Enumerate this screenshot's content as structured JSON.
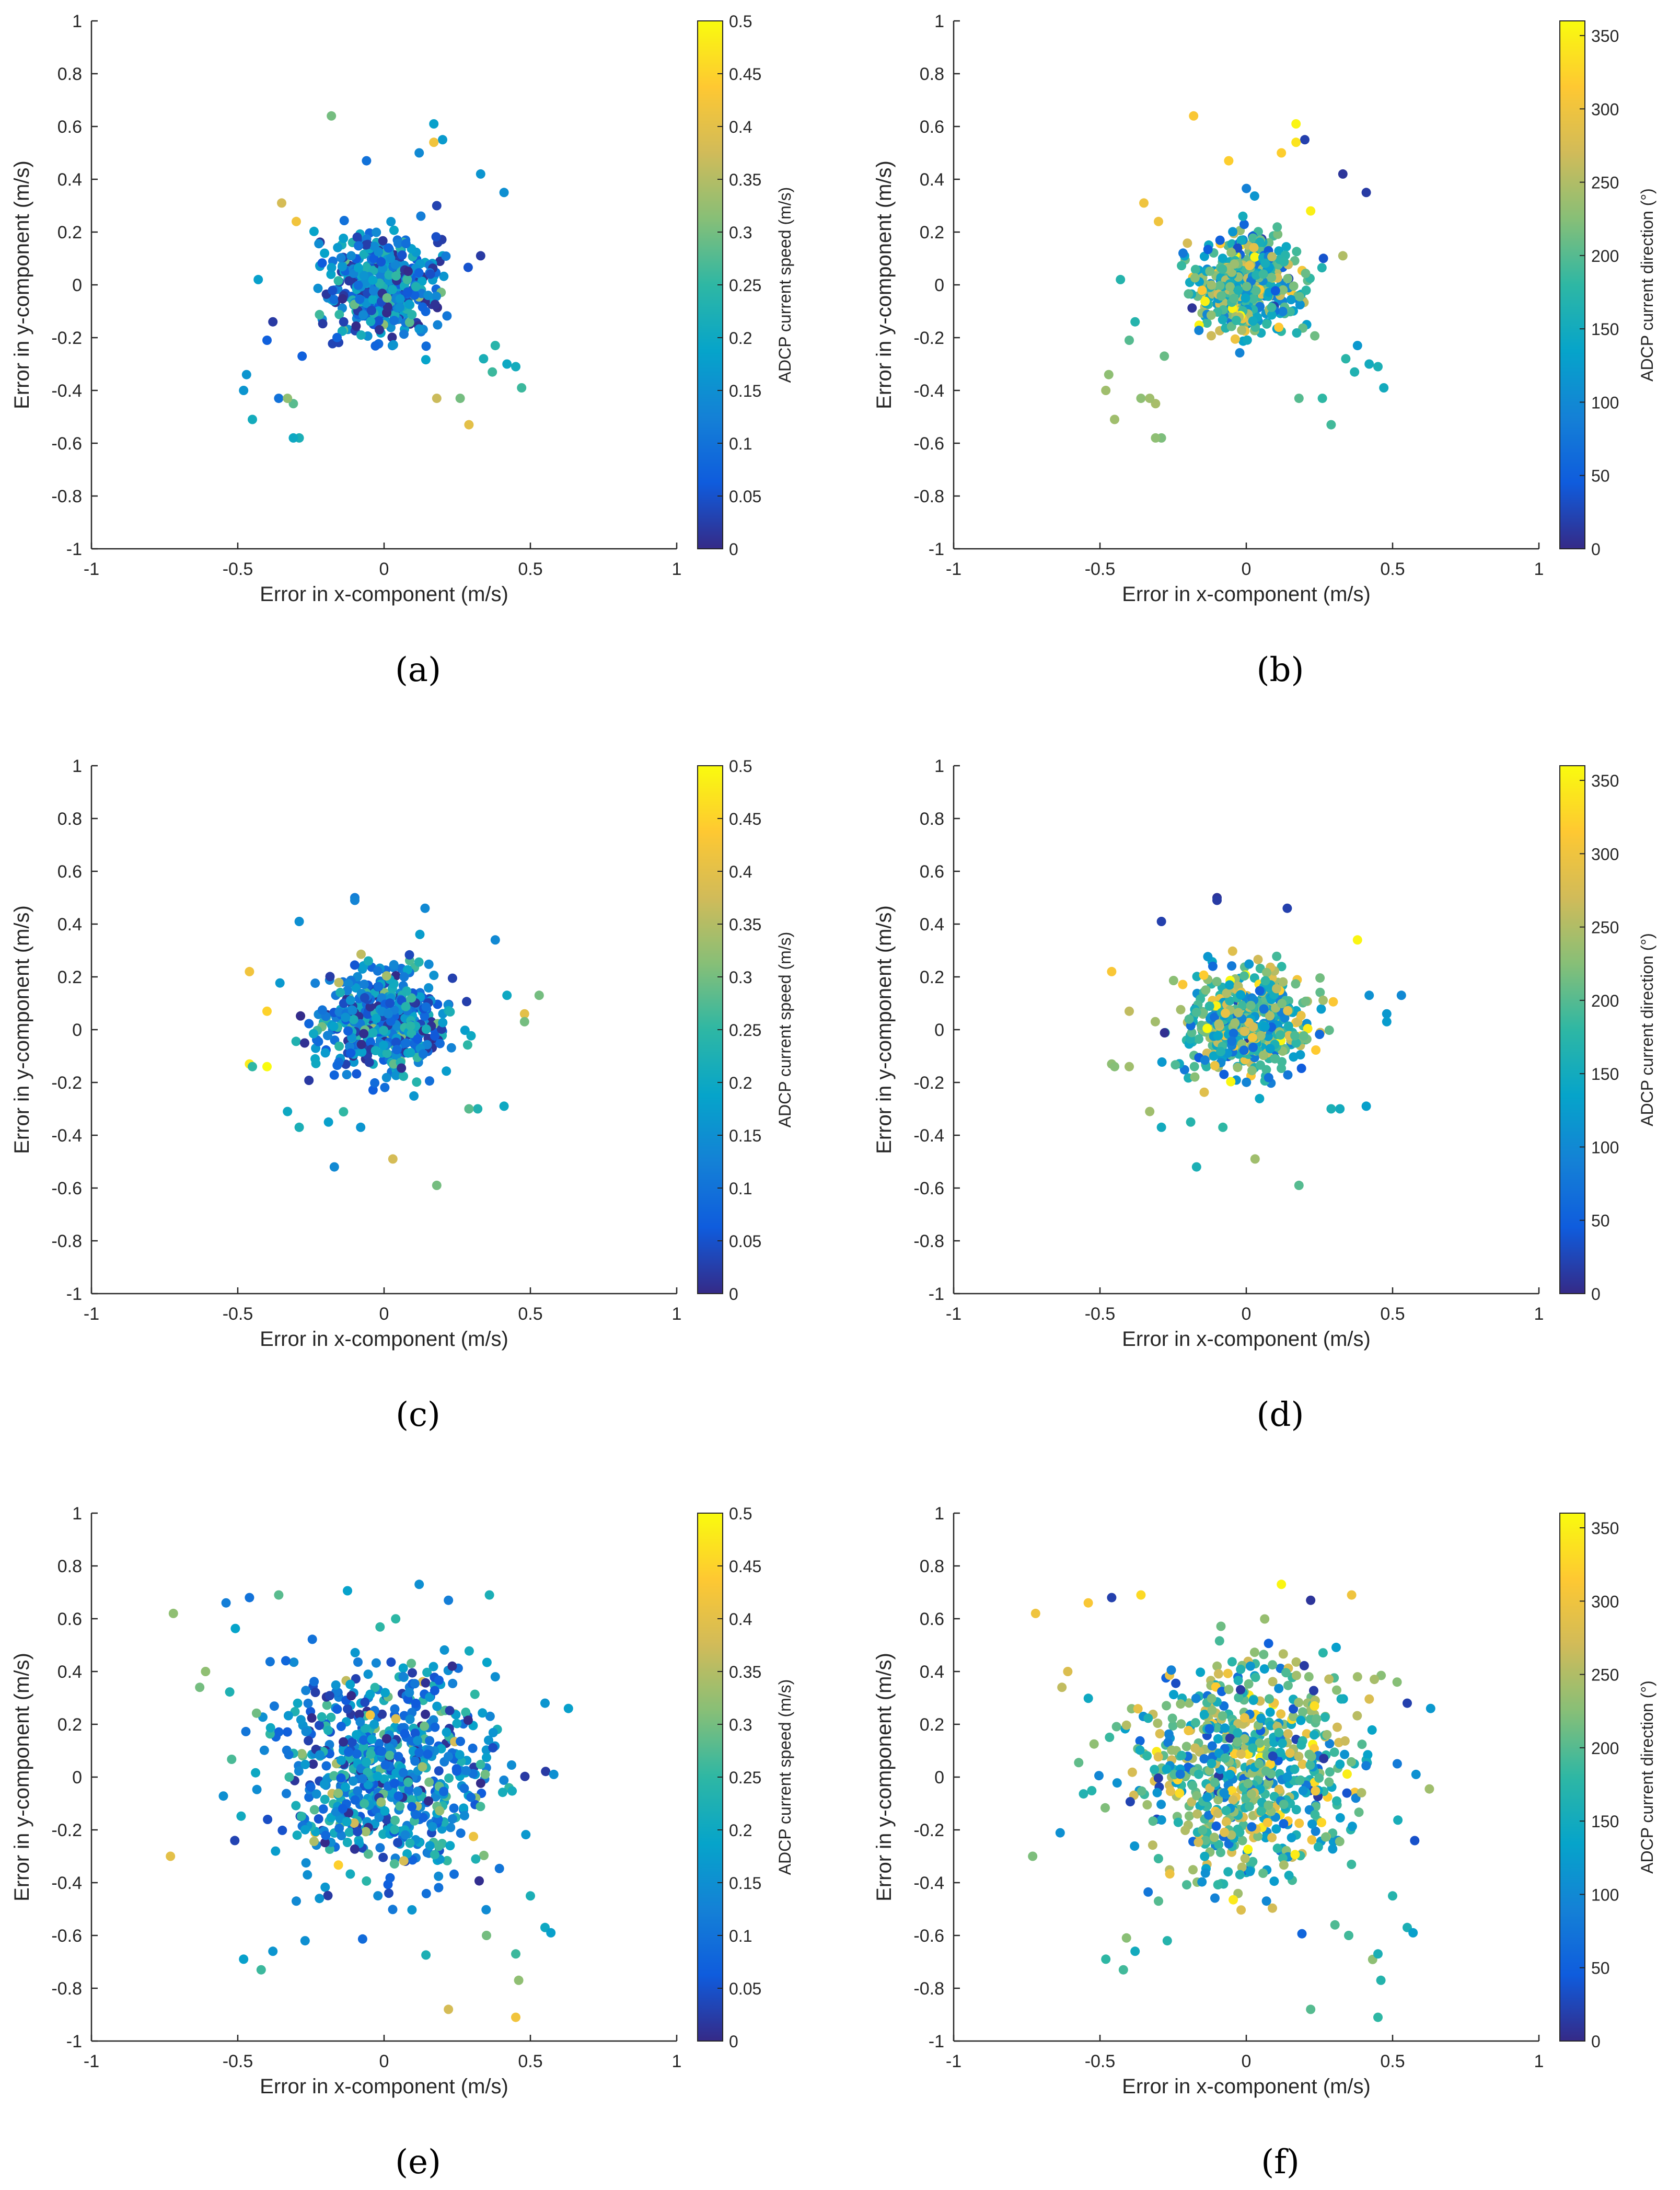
{
  "figure": {
    "x_tick_labels": [
      "-1",
      "-0.5",
      "0",
      "0.5",
      "1"
    ],
    "y_tick_labels": [
      "-1",
      "-0.8",
      "-0.6",
      "-0.4",
      "-0.2",
      "0",
      "0.2",
      "0.4",
      "0.6",
      "0.8",
      "1"
    ]
  },
  "colors": {
    "parula": [
      "#352a87",
      "#0f5cdd",
      "#1481d6",
      "#06a4ca",
      "#2eb7a4",
      "#87bf77",
      "#d1bb59",
      "#fec832",
      "#f9fb0e"
    ]
  },
  "chart_data": [
    {
      "type": "scatter",
      "panel": "(a)",
      "xlabel": "Error in x-component (m/s)",
      "ylabel": "Error in y-component (m/s)",
      "xlim": [
        -1,
        1
      ],
      "ylim": [
        -1,
        1
      ],
      "colorbar": {
        "label": "ADCP current speed (m/s)",
        "range": [
          0,
          0.5
        ],
        "ticks": [
          "0",
          "0.05",
          "0.1",
          "0.15",
          "0.2",
          "0.25",
          "0.3",
          "0.35",
          "0.4",
          "0.45",
          "0.5"
        ]
      },
      "cloud": {
        "center": [
          0.0,
          0.0
        ],
        "spread": [
          0.09,
          0.1
        ],
        "n": 450,
        "color_mean": 0.12,
        "color_sd": 0.08
      },
      "outliers": [
        {
          "x": -0.18,
          "y": 0.64,
          "c": 0.3
        },
        {
          "x": 0.17,
          "y": 0.61,
          "c": 0.18
        },
        {
          "x": 0.2,
          "y": 0.55,
          "c": 0.17
        },
        {
          "x": 0.17,
          "y": 0.54,
          "c": 0.42
        },
        {
          "x": 0.12,
          "y": 0.5,
          "c": 0.14
        },
        {
          "x": -0.06,
          "y": 0.47,
          "c": 0.1
        },
        {
          "x": 0.33,
          "y": 0.42,
          "c": 0.16
        },
        {
          "x": 0.41,
          "y": 0.35,
          "c": 0.15
        },
        {
          "x": -0.35,
          "y": 0.31,
          "c": 0.38
        },
        {
          "x": -0.3,
          "y": 0.24,
          "c": 0.42
        },
        {
          "x": -0.43,
          "y": 0.02,
          "c": 0.18
        },
        {
          "x": -0.38,
          "y": -0.14,
          "c": 0.02
        },
        {
          "x": -0.4,
          "y": -0.21,
          "c": 0.07
        },
        {
          "x": -0.28,
          "y": -0.27,
          "c": 0.07
        },
        {
          "x": -0.47,
          "y": -0.34,
          "c": 0.16
        },
        {
          "x": -0.48,
          "y": -0.4,
          "c": 0.16
        },
        {
          "x": -0.45,
          "y": -0.51,
          "c": 0.21
        },
        {
          "x": -0.36,
          "y": -0.43,
          "c": 0.1
        },
        {
          "x": -0.31,
          "y": -0.45,
          "c": 0.28
        },
        {
          "x": -0.29,
          "y": -0.58,
          "c": 0.22
        },
        {
          "x": -0.31,
          "y": -0.58,
          "c": 0.2
        },
        {
          "x": -0.33,
          "y": -0.43,
          "c": 0.32
        },
        {
          "x": 0.18,
          "y": -0.43,
          "c": 0.37
        },
        {
          "x": 0.29,
          "y": -0.53,
          "c": 0.4
        },
        {
          "x": 0.26,
          "y": -0.43,
          "c": 0.3
        },
        {
          "x": 0.34,
          "y": -0.28,
          "c": 0.22
        },
        {
          "x": 0.37,
          "y": -0.33,
          "c": 0.26
        },
        {
          "x": 0.42,
          "y": -0.3,
          "c": 0.2
        },
        {
          "x": 0.45,
          "y": -0.31,
          "c": 0.21
        },
        {
          "x": 0.47,
          "y": -0.39,
          "c": 0.26
        },
        {
          "x": 0.38,
          "y": -0.23,
          "c": 0.24
        },
        {
          "x": 0.33,
          "y": 0.11,
          "c": 0.02
        },
        {
          "x": 0.18,
          "y": 0.3,
          "c": 0.03
        }
      ]
    },
    {
      "type": "scatter",
      "panel": "(b)",
      "xlabel": "Error in x-component (m/s)",
      "ylabel": "Error in y-component (m/s)",
      "xlim": [
        -1,
        1
      ],
      "ylim": [
        -1,
        1
      ],
      "colorbar": {
        "label": "ADCP current direction (°)",
        "range": [
          0,
          360
        ],
        "ticks": [
          "0",
          "50",
          "100",
          "150",
          "200",
          "250",
          "300",
          "350"
        ]
      },
      "cloud": {
        "center": [
          0.0,
          0.0
        ],
        "spread": [
          0.09,
          0.1
        ],
        "n": 450,
        "color_mean": 185,
        "color_sd": 75
      },
      "outliers": [
        {
          "x": -0.18,
          "y": 0.64,
          "c": 310
        },
        {
          "x": 0.17,
          "y": 0.61,
          "c": 355
        },
        {
          "x": 0.2,
          "y": 0.55,
          "c": 20
        },
        {
          "x": 0.17,
          "y": 0.54,
          "c": 340
        },
        {
          "x": 0.12,
          "y": 0.5,
          "c": 320
        },
        {
          "x": -0.06,
          "y": 0.47,
          "c": 320
        },
        {
          "x": 0.33,
          "y": 0.42,
          "c": 10
        },
        {
          "x": 0.41,
          "y": 0.35,
          "c": 15
        },
        {
          "x": -0.35,
          "y": 0.31,
          "c": 300
        },
        {
          "x": -0.3,
          "y": 0.24,
          "c": 300
        },
        {
          "x": -0.43,
          "y": 0.02,
          "c": 170
        },
        {
          "x": -0.38,
          "y": -0.14,
          "c": 170
        },
        {
          "x": -0.4,
          "y": -0.21,
          "c": 200
        },
        {
          "x": -0.28,
          "y": -0.27,
          "c": 210
        },
        {
          "x": -0.47,
          "y": -0.34,
          "c": 230
        },
        {
          "x": -0.48,
          "y": -0.4,
          "c": 240
        },
        {
          "x": -0.45,
          "y": -0.51,
          "c": 240
        },
        {
          "x": -0.36,
          "y": -0.43,
          "c": 230
        },
        {
          "x": -0.31,
          "y": -0.45,
          "c": 245
        },
        {
          "x": -0.29,
          "y": -0.58,
          "c": 220
        },
        {
          "x": -0.31,
          "y": -0.58,
          "c": 230
        },
        {
          "x": -0.33,
          "y": -0.43,
          "c": 240
        },
        {
          "x": 0.18,
          "y": -0.43,
          "c": 200
        },
        {
          "x": 0.29,
          "y": -0.53,
          "c": 190
        },
        {
          "x": 0.26,
          "y": -0.43,
          "c": 180
        },
        {
          "x": 0.34,
          "y": -0.28,
          "c": 175
        },
        {
          "x": 0.37,
          "y": -0.33,
          "c": 165
        },
        {
          "x": 0.42,
          "y": -0.3,
          "c": 150
        },
        {
          "x": 0.45,
          "y": -0.31,
          "c": 160
        },
        {
          "x": 0.47,
          "y": -0.39,
          "c": 150
        },
        {
          "x": 0.38,
          "y": -0.23,
          "c": 120
        },
        {
          "x": 0.33,
          "y": 0.11,
          "c": 250
        },
        {
          "x": 0.22,
          "y": 0.28,
          "c": 350
        }
      ]
    },
    {
      "type": "scatter",
      "panel": "(c)",
      "xlabel": "Error in x-component (m/s)",
      "ylabel": "Error in y-component (m/s)",
      "xlim": [
        -1,
        1
      ],
      "ylim": [
        -1,
        1
      ],
      "colorbar": {
        "label": "ADCP current speed (m/s)",
        "range": [
          0,
          0.5
        ],
        "ticks": [
          "0",
          "0.05",
          "0.1",
          "0.15",
          "0.2",
          "0.25",
          "0.3",
          "0.35",
          "0.4",
          "0.45",
          "0.5"
        ]
      },
      "cloud": {
        "center": [
          0.0,
          0.03
        ],
        "spread": [
          0.11,
          0.1
        ],
        "n": 480,
        "color_mean": 0.13,
        "color_sd": 0.09
      },
      "outliers": [
        {
          "x": -0.46,
          "y": 0.22,
          "c": 0.42
        },
        {
          "x": -0.4,
          "y": 0.07,
          "c": 0.45
        },
        {
          "x": -0.46,
          "y": -0.13,
          "c": 0.48
        },
        {
          "x": -0.4,
          "y": -0.14,
          "c": 0.5
        },
        {
          "x": -0.45,
          "y": -0.14,
          "c": 0.25
        },
        {
          "x": -0.29,
          "y": 0.41,
          "c": 0.15
        },
        {
          "x": -0.1,
          "y": 0.5,
          "c": 0.12
        },
        {
          "x": -0.1,
          "y": 0.49,
          "c": 0.13
        },
        {
          "x": 0.14,
          "y": 0.46,
          "c": 0.14
        },
        {
          "x": 0.38,
          "y": 0.34,
          "c": 0.14
        },
        {
          "x": 0.42,
          "y": 0.13,
          "c": 0.2
        },
        {
          "x": 0.48,
          "y": 0.06,
          "c": 0.4
        },
        {
          "x": 0.48,
          "y": 0.03,
          "c": 0.3
        },
        {
          "x": 0.53,
          "y": 0.13,
          "c": 0.3
        },
        {
          "x": 0.41,
          "y": -0.29,
          "c": 0.2
        },
        {
          "x": 0.32,
          "y": -0.3,
          "c": 0.23
        },
        {
          "x": 0.29,
          "y": -0.3,
          "c": 0.28
        },
        {
          "x": -0.17,
          "y": -0.52,
          "c": 0.14
        },
        {
          "x": 0.03,
          "y": -0.49,
          "c": 0.38
        },
        {
          "x": 0.18,
          "y": -0.59,
          "c": 0.3
        },
        {
          "x": -0.33,
          "y": -0.31,
          "c": 0.2
        },
        {
          "x": -0.29,
          "y": -0.37,
          "c": 0.22
        },
        {
          "x": -0.19,
          "y": -0.35,
          "c": 0.18
        },
        {
          "x": -0.08,
          "y": -0.37,
          "c": 0.16
        }
      ]
    },
    {
      "type": "scatter",
      "panel": "(d)",
      "xlabel": "Error in x-component (m/s)",
      "ylabel": "Error in y-component (m/s)",
      "xlim": [
        -1,
        1
      ],
      "ylim": [
        -1,
        1
      ],
      "colorbar": {
        "label": "ADCP current direction (°)",
        "range": [
          0,
          360
        ],
        "ticks": [
          "0",
          "50",
          "100",
          "150",
          "200",
          "250",
          "300",
          "350"
        ]
      },
      "cloud": {
        "center": [
          0.0,
          0.03
        ],
        "spread": [
          0.11,
          0.1
        ],
        "n": 480,
        "color_mean": 190,
        "color_sd": 70
      },
      "outliers": [
        {
          "x": -0.46,
          "y": 0.22,
          "c": 310
        },
        {
          "x": -0.4,
          "y": 0.07,
          "c": 260
        },
        {
          "x": -0.46,
          "y": -0.13,
          "c": 230
        },
        {
          "x": -0.4,
          "y": -0.14,
          "c": 240
        },
        {
          "x": -0.45,
          "y": -0.14,
          "c": 225
        },
        {
          "x": -0.29,
          "y": 0.41,
          "c": 20
        },
        {
          "x": -0.1,
          "y": 0.5,
          "c": 10
        },
        {
          "x": -0.1,
          "y": 0.49,
          "c": 15
        },
        {
          "x": 0.14,
          "y": 0.46,
          "c": 20
        },
        {
          "x": 0.38,
          "y": 0.34,
          "c": 355
        },
        {
          "x": 0.42,
          "y": 0.13,
          "c": 110
        },
        {
          "x": 0.48,
          "y": 0.06,
          "c": 120
        },
        {
          "x": 0.48,
          "y": 0.03,
          "c": 125
        },
        {
          "x": 0.53,
          "y": 0.13,
          "c": 100
        },
        {
          "x": 0.41,
          "y": -0.29,
          "c": 130
        },
        {
          "x": 0.32,
          "y": -0.3,
          "c": 150
        },
        {
          "x": 0.29,
          "y": -0.3,
          "c": 160
        },
        {
          "x": -0.17,
          "y": -0.52,
          "c": 160
        },
        {
          "x": 0.03,
          "y": -0.49,
          "c": 240
        },
        {
          "x": 0.18,
          "y": -0.59,
          "c": 200
        },
        {
          "x": -0.33,
          "y": -0.31,
          "c": 240
        },
        {
          "x": -0.29,
          "y": -0.37,
          "c": 150
        },
        {
          "x": -0.19,
          "y": -0.35,
          "c": 170
        },
        {
          "x": -0.08,
          "y": -0.37,
          "c": 180
        }
      ]
    },
    {
      "type": "scatter",
      "panel": "(e)",
      "xlabel": "Error in x-component (m/s)",
      "ylabel": "Error in y-component (m/s)",
      "xlim": [
        -1,
        1
      ],
      "ylim": [
        -1,
        1
      ],
      "colorbar": {
        "label": "ADCP current speed (m/s)",
        "range": [
          0,
          0.5
        ],
        "ticks": [
          "0",
          "0.05",
          "0.1",
          "0.15",
          "0.2",
          "0.25",
          "0.3",
          "0.35",
          "0.4",
          "0.45",
          "0.5"
        ]
      },
      "cloud": {
        "center": [
          0.0,
          0.03
        ],
        "spread": [
          0.19,
          0.2
        ],
        "n": 700,
        "color_mean": 0.14,
        "color_sd": 0.09
      },
      "outliers": [
        {
          "x": -0.72,
          "y": 0.62,
          "c": 0.32
        },
        {
          "x": -0.73,
          "y": -0.3,
          "c": 0.4
        },
        {
          "x": -0.54,
          "y": 0.66,
          "c": 0.12
        },
        {
          "x": -0.46,
          "y": 0.68,
          "c": 0.1
        },
        {
          "x": -0.36,
          "y": 0.69,
          "c": 0.28
        },
        {
          "x": 0.12,
          "y": 0.73,
          "c": 0.15
        },
        {
          "x": 0.22,
          "y": 0.67,
          "c": 0.12
        },
        {
          "x": 0.36,
          "y": 0.69,
          "c": 0.22
        },
        {
          "x": 0.63,
          "y": 0.26,
          "c": 0.18
        },
        {
          "x": 0.55,
          "y": 0.28,
          "c": 0.16
        },
        {
          "x": 0.58,
          "y": 0.01,
          "c": 0.15
        },
        {
          "x": 0.55,
          "y": -0.57,
          "c": 0.2
        },
        {
          "x": 0.57,
          "y": -0.59,
          "c": 0.18
        },
        {
          "x": 0.5,
          "y": -0.45,
          "c": 0.22
        },
        {
          "x": 0.45,
          "y": -0.67,
          "c": 0.26
        },
        {
          "x": 0.46,
          "y": -0.77,
          "c": 0.32
        },
        {
          "x": 0.45,
          "y": -0.91,
          "c": 0.42
        },
        {
          "x": 0.22,
          "y": -0.88,
          "c": 0.38
        },
        {
          "x": -0.42,
          "y": -0.73,
          "c": 0.26
        },
        {
          "x": -0.48,
          "y": -0.69,
          "c": 0.18
        },
        {
          "x": -0.38,
          "y": -0.66,
          "c": 0.16
        },
        {
          "x": -0.27,
          "y": -0.62,
          "c": 0.15
        },
        {
          "x": -0.3,
          "y": -0.47,
          "c": 0.14
        },
        {
          "x": 0.35,
          "y": -0.6,
          "c": 0.3
        },
        {
          "x": 0.38,
          "y": 0.38,
          "c": 0.15
        },
        {
          "x": -0.61,
          "y": 0.4,
          "c": 0.32
        },
        {
          "x": -0.63,
          "y": 0.34,
          "c": 0.3
        }
      ]
    },
    {
      "type": "scatter",
      "panel": "(f)",
      "xlabel": "Error in x-component (m/s)",
      "ylabel": "Error in y-component (m/s)",
      "xlim": [
        -1,
        1
      ],
      "ylim": [
        -1,
        1
      ],
      "colorbar": {
        "label": "ADCP current direction (°)",
        "range": [
          0,
          360
        ],
        "ticks": [
          "0",
          "50",
          "100",
          "150",
          "200",
          "250",
          "300",
          "350"
        ]
      },
      "cloud": {
        "center": [
          0.0,
          0.03
        ],
        "spread": [
          0.19,
          0.2
        ],
        "n": 700,
        "color_mean": 185,
        "color_sd": 80
      },
      "outliers": [
        {
          "x": -0.72,
          "y": 0.62,
          "c": 300
        },
        {
          "x": -0.73,
          "y": -0.3,
          "c": 220
        },
        {
          "x": -0.54,
          "y": 0.66,
          "c": 310
        },
        {
          "x": -0.46,
          "y": 0.68,
          "c": 20
        },
        {
          "x": -0.36,
          "y": 0.69,
          "c": 330
        },
        {
          "x": 0.12,
          "y": 0.73,
          "c": 355
        },
        {
          "x": 0.22,
          "y": 0.67,
          "c": 10
        },
        {
          "x": 0.36,
          "y": 0.69,
          "c": 300
        },
        {
          "x": 0.63,
          "y": 0.26,
          "c": 120
        },
        {
          "x": 0.55,
          "y": 0.28,
          "c": 20
        },
        {
          "x": 0.58,
          "y": 0.01,
          "c": 110
        },
        {
          "x": 0.55,
          "y": -0.57,
          "c": 160
        },
        {
          "x": 0.57,
          "y": -0.59,
          "c": 130
        },
        {
          "x": 0.5,
          "y": -0.45,
          "c": 170
        },
        {
          "x": 0.45,
          "y": -0.67,
          "c": 160
        },
        {
          "x": 0.46,
          "y": -0.77,
          "c": 170
        },
        {
          "x": 0.45,
          "y": -0.91,
          "c": 180
        },
        {
          "x": 0.22,
          "y": -0.88,
          "c": 200
        },
        {
          "x": -0.42,
          "y": -0.73,
          "c": 190
        },
        {
          "x": -0.48,
          "y": -0.69,
          "c": 180
        },
        {
          "x": -0.38,
          "y": -0.66,
          "c": 150
        },
        {
          "x": -0.27,
          "y": -0.62,
          "c": 170
        },
        {
          "x": -0.3,
          "y": -0.47,
          "c": 200
        },
        {
          "x": 0.35,
          "y": -0.6,
          "c": 190
        },
        {
          "x": 0.38,
          "y": 0.38,
          "c": 240
        },
        {
          "x": -0.61,
          "y": 0.4,
          "c": 280
        },
        {
          "x": -0.63,
          "y": 0.34,
          "c": 260
        }
      ]
    }
  ]
}
